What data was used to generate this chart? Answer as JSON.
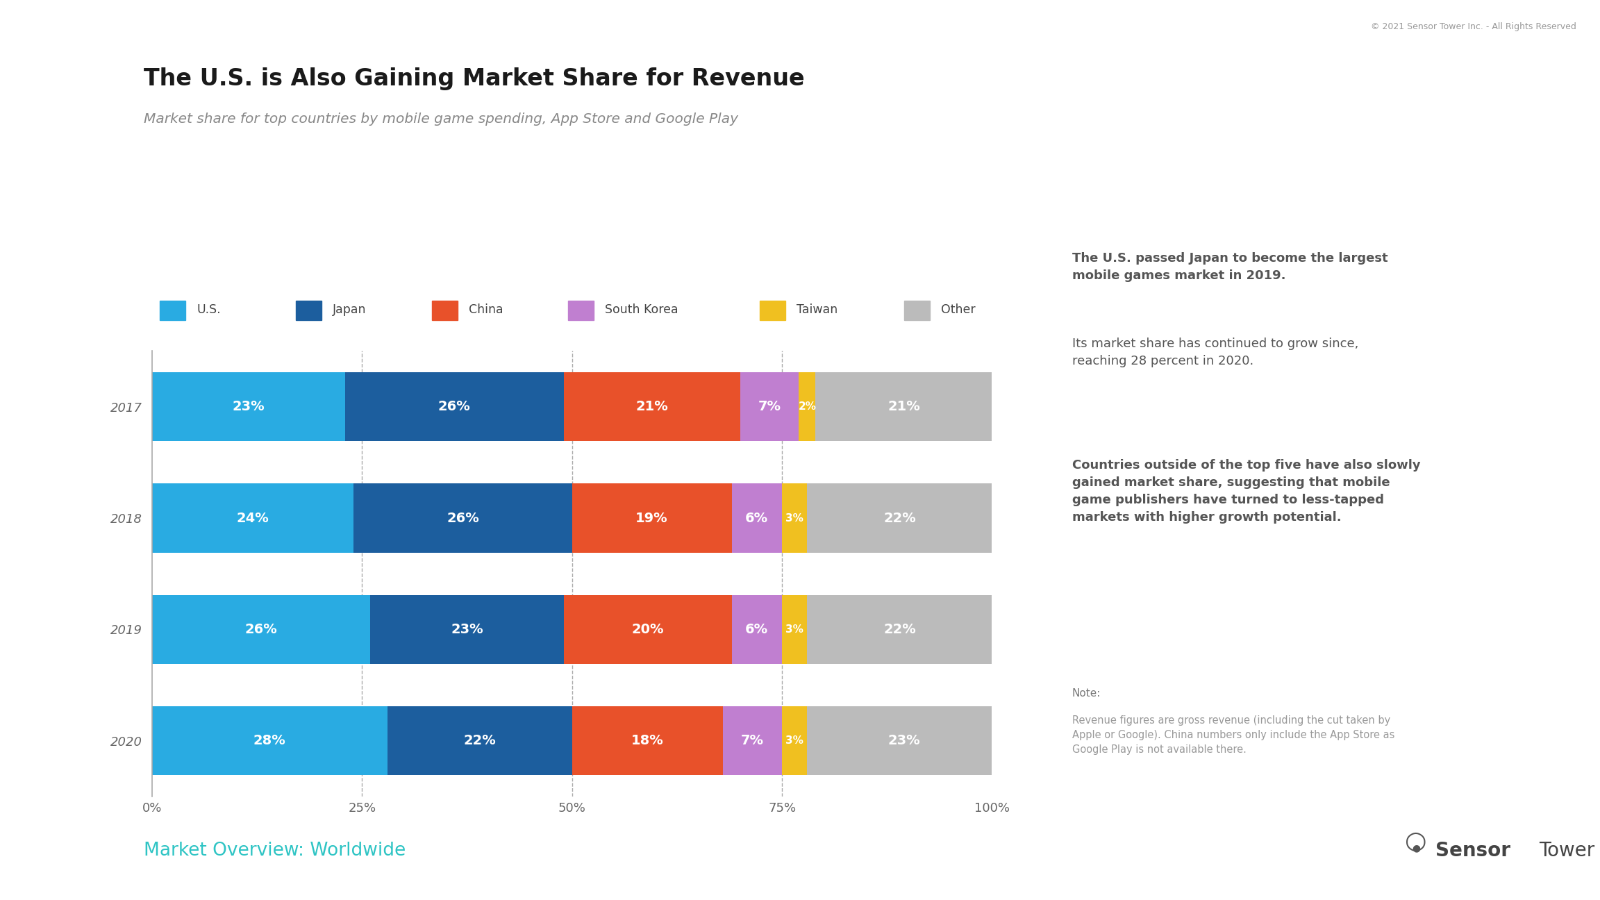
{
  "title": "The U.S. is Also Gaining Market Share for Revenue",
  "subtitle": "Market share for top countries by mobile game spending, App Store and Google Play",
  "years": [
    "2017",
    "2018",
    "2019",
    "2020"
  ],
  "categories": [
    "U.S.",
    "Japan",
    "China",
    "South Korea",
    "Taiwan",
    "Other"
  ],
  "colors": [
    "#29ABE2",
    "#1C5E9E",
    "#E8512A",
    "#C07FD0",
    "#F0C020",
    "#BBBBBB"
  ],
  "data": {
    "2017": [
      23,
      26,
      21,
      7,
      2,
      21
    ],
    "2018": [
      24,
      26,
      19,
      6,
      3,
      22
    ],
    "2019": [
      26,
      23,
      20,
      6,
      3,
      22
    ],
    "2020": [
      28,
      22,
      18,
      7,
      3,
      23
    ]
  },
  "right_panel_bg": "#EFEFEF",
  "left_panel_bg": "#FFFFFF",
  "copyright": "© 2021 Sensor Tower Inc. - All Rights Reserved",
  "footer_left": "Market Overview: Worldwide",
  "x_ticks": [
    "0%",
    "25%",
    "50%",
    "75%",
    "100%"
  ],
  "x_tick_vals": [
    0,
    25,
    50,
    75,
    100
  ],
  "bar_label_fontsize": 14,
  "small_bar_label_fontsize": 11
}
